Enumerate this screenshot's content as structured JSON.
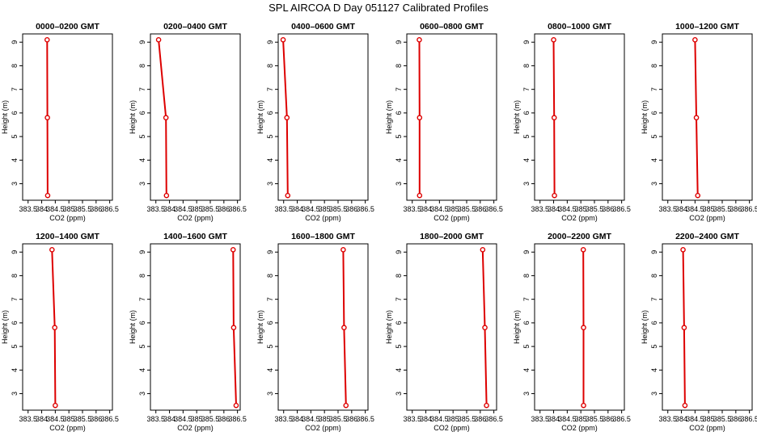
{
  "figure": {
    "title": "SPL AIRCOA D  Day 051127  Calibrated Profiles"
  },
  "chart_data": {
    "type": "line",
    "series_color": "#dd0000",
    "xlabel": "CO2 (ppm)",
    "ylabel": "Height (m)",
    "xlim": [
      383.3,
      386.6
    ],
    "ylim": [
      2.3,
      9.35
    ],
    "xticks": [
      383.5,
      384.5,
      385.5,
      386.5
    ],
    "xtick_labels": [
      "383.5",
      "384.5",
      "385.5",
      "386.5"
    ],
    "xticks_minor": [
      384.0,
      385.0,
      386.0
    ],
    "xtick_labels_minor": [
      "384",
      "385",
      "386"
    ],
    "yticks": [
      3,
      4,
      5,
      6,
      7,
      8,
      9
    ],
    "grid": false,
    "panels": [
      {
        "title": "0000–0200 GMT",
        "points": [
          {
            "x": 384.2,
            "y": 9.1
          },
          {
            "x": 384.21,
            "y": 5.8
          },
          {
            "x": 384.22,
            "y": 2.5
          }
        ]
      },
      {
        "title": "0200–0400 GMT",
        "points": [
          {
            "x": 383.6,
            "y": 9.1
          },
          {
            "x": 383.87,
            "y": 5.8
          },
          {
            "x": 383.89,
            "y": 2.5
          }
        ]
      },
      {
        "title": "0400–0600 GMT",
        "points": [
          {
            "x": 383.48,
            "y": 9.1
          },
          {
            "x": 383.62,
            "y": 5.8
          },
          {
            "x": 383.65,
            "y": 2.5
          }
        ]
      },
      {
        "title": "0600–0800 GMT",
        "points": [
          {
            "x": 383.76,
            "y": 9.1
          },
          {
            "x": 383.77,
            "y": 5.8
          },
          {
            "x": 383.77,
            "y": 2.5
          }
        ]
      },
      {
        "title": "0800–1000 GMT",
        "points": [
          {
            "x": 384.0,
            "y": 9.1
          },
          {
            "x": 384.02,
            "y": 5.8
          },
          {
            "x": 384.03,
            "y": 2.5
          }
        ]
      },
      {
        "title": "1000–1200 GMT",
        "points": [
          {
            "x": 384.5,
            "y": 9.1
          },
          {
            "x": 384.55,
            "y": 5.8
          },
          {
            "x": 384.6,
            "y": 2.5
          }
        ]
      },
      {
        "title": "1200–1400 GMT",
        "points": [
          {
            "x": 384.38,
            "y": 9.1
          },
          {
            "x": 384.48,
            "y": 5.8
          },
          {
            "x": 384.5,
            "y": 2.5
          }
        ]
      },
      {
        "title": "1400–1600 GMT",
        "points": [
          {
            "x": 386.34,
            "y": 9.1
          },
          {
            "x": 386.36,
            "y": 5.8
          },
          {
            "x": 386.45,
            "y": 2.5
          }
        ]
      },
      {
        "title": "1600–1800 GMT",
        "points": [
          {
            "x": 385.69,
            "y": 9.1
          },
          {
            "x": 385.72,
            "y": 5.8
          },
          {
            "x": 385.79,
            "y": 2.5
          }
        ]
      },
      {
        "title": "1800–2000 GMT",
        "points": [
          {
            "x": 386.09,
            "y": 9.1
          },
          {
            "x": 386.17,
            "y": 5.8
          },
          {
            "x": 386.23,
            "y": 2.5
          }
        ]
      },
      {
        "title": "2000–2200 GMT",
        "points": [
          {
            "x": 385.09,
            "y": 9.1
          },
          {
            "x": 385.1,
            "y": 5.8
          },
          {
            "x": 385.1,
            "y": 2.5
          }
        ]
      },
      {
        "title": "2200–2400 GMT",
        "points": [
          {
            "x": 384.06,
            "y": 9.1
          },
          {
            "x": 384.1,
            "y": 5.8
          },
          {
            "x": 384.13,
            "y": 2.5
          }
        ]
      }
    ]
  }
}
